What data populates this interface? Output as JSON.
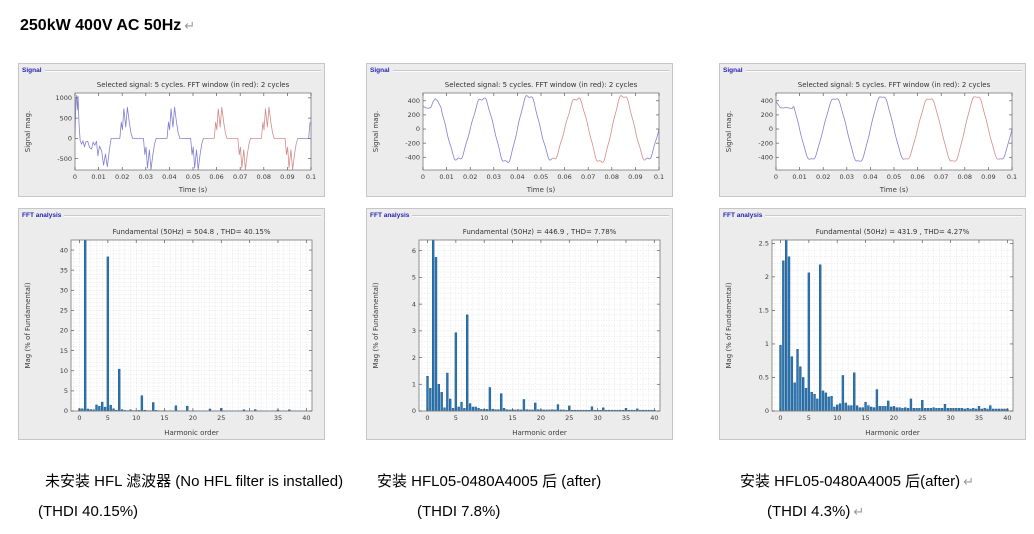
{
  "page": {
    "title": "250kW 400V AC 50Hz",
    "paragraph_mark": "↵"
  },
  "colors": {
    "panel_bg": "#ececec",
    "panel_label": "#2424b0",
    "bar_fill": "#2e75b0",
    "bar_edge": "#1d5e94",
    "line_blue": "#8080d2",
    "line_red": "#d48b8b",
    "axis_text": "#3c3c3c",
    "grid": "#d7d7d7"
  },
  "columns": [
    {
      "caption_line1": "未安装 HFL 滤波器  (No HFL filter is installed)",
      "mark1": "",
      "caption_line2": "(THDI 40.15%)",
      "mark2": ""
    },
    {
      "caption_line1": "安装 HFL05-0480A4005 后  (after)",
      "mark1": "",
      "caption_line2": "(THDI 7.8%)",
      "mark2": ""
    },
    {
      "caption_line1": "安装 HFL05-0480A4005 后(after)",
      "mark1": "↵",
      "caption_line2": "(THDI 4.3%)",
      "mark2": "↵"
    }
  ],
  "chart_data": [
    {
      "id": "signal-no-filter",
      "type": "line",
      "panel_label": "Signal",
      "title": "Selected signal: 5 cycles. FFT window (in red): 2 cycles",
      "xlabel": "Time (s)",
      "ylabel": "Signal mag.",
      "xlim": [
        0,
        0.1
      ],
      "ylim": [
        -780,
        1120
      ],
      "xticks": [
        0,
        0.01,
        0.02,
        0.03,
        0.04,
        0.05,
        0.06,
        0.07,
        0.08,
        0.09,
        0.1
      ],
      "xtick_labels": [
        "0",
        "0.01",
        "0.02",
        "0.03",
        "0.04",
        "0.05",
        "0.06",
        "0.07",
        "0.08",
        "0.09",
        "0.1"
      ],
      "yticks": [
        -500,
        0,
        500,
        1000
      ],
      "ytick_labels": [
        "-500",
        "0",
        "500",
        "1000"
      ],
      "grid": null,
      "window_red_s": [
        0.0545,
        0.0945
      ],
      "waveform": {
        "kind": "keypoints",
        "period_ms": 20,
        "start_offset_ms": 17.5,
        "startup": [
          [
            0,
            20
          ],
          [
            0.4,
            950
          ],
          [
            0.7,
            1060
          ],
          [
            1.0,
            700
          ],
          [
            1.3,
            1040
          ],
          [
            1.7,
            350
          ],
          [
            2.2,
            -60
          ],
          [
            2.8,
            -140
          ],
          [
            3.4,
            -60
          ],
          [
            4.0,
            -210
          ],
          [
            4.6,
            -90
          ],
          [
            5.4,
            -70
          ],
          [
            6.2,
            -230
          ],
          [
            7.0,
            -260
          ],
          [
            7.7,
            -90
          ],
          [
            8.4,
            -170
          ],
          [
            9.1,
            -70
          ],
          [
            9.7,
            -430
          ],
          [
            10.4,
            -190
          ],
          [
            11.3,
            -310
          ],
          [
            12.1,
            -660
          ],
          [
            12.9,
            -390
          ],
          [
            13.7,
            -700
          ],
          [
            14.6,
            -270
          ],
          [
            15.3,
            0
          ],
          [
            17.5,
            0
          ]
        ],
        "half_cycle": [
          [
            0,
            0
          ],
          [
            1.5,
            0
          ],
          [
            2.1,
            400
          ],
          [
            2.6,
            215
          ],
          [
            3.2,
            730
          ],
          [
            4.0,
            280
          ],
          [
            4.7,
            770
          ],
          [
            5.5,
            400
          ],
          [
            6.2,
            140
          ],
          [
            6.9,
            0
          ],
          [
            10,
            0
          ]
        ]
      }
    },
    {
      "id": "fft-no-filter",
      "type": "bar",
      "panel_label": "FFT analysis",
      "title": "Fundamental (50Hz) = 504.8 , THD= 40.15%",
      "xlabel": "Harmonic order",
      "ylabel": "Mag (% of Fundamental)",
      "xlim": [
        -1.5,
        41
      ],
      "ylim": [
        0,
        42.5
      ],
      "xticks": [
        0,
        5,
        10,
        15,
        20,
        25,
        30,
        35,
        40
      ],
      "xtick_labels": [
        "0",
        "5",
        "10",
        "15",
        "20",
        "25",
        "30",
        "35",
        "40"
      ],
      "yticks": [
        0,
        5,
        10,
        15,
        20,
        25,
        30,
        35,
        40
      ],
      "ytick_labels": [
        "0",
        "5",
        "10",
        "15",
        "20",
        "25",
        "30",
        "35",
        "40"
      ],
      "grid": {
        "x_step": 1,
        "y_step": 1
      },
      "bar_step": 0.5,
      "values": [
        0.55,
        0.55,
        100,
        0.5,
        0.35,
        0.3,
        1.5,
        1.15,
        2.2,
        0.95,
        38.3,
        1.45,
        0.55,
        0.2,
        10.4,
        0.35,
        0.15,
        0.1,
        0.3,
        0.1,
        0.1,
        0.15,
        3.8,
        0.2,
        0.1,
        0.08,
        2.1,
        0.15,
        0.08,
        0.06,
        0.1,
        0.06,
        0.08,
        0.06,
        1.3,
        0.08,
        0.06,
        0.06,
        1.2,
        0.06,
        0.08,
        0.05,
        0.05,
        0.05,
        0.05,
        0.05,
        0.5,
        0.05,
        0.05,
        0.05,
        0.65,
        0.05,
        0.05,
        0.04,
        0.04,
        0.04,
        0.04,
        0.04,
        0.3,
        0.04,
        0.04,
        0.04,
        0.35,
        0.04,
        0.04,
        0.03,
        0.03,
        0.03,
        0.03,
        0.03,
        0.25,
        0.03,
        0.03,
        0.03,
        0.3,
        0.03,
        0.03,
        0.03,
        0.03,
        0.03,
        0.03
      ]
    },
    {
      "id": "signal-after-1",
      "type": "line",
      "panel_label": "Signal",
      "title": "Selected signal: 5 cycles. FFT window (in red): 2 cycles",
      "xlabel": "Time (s)",
      "ylabel": "Signal mag.",
      "xlim": [
        0,
        0.1
      ],
      "ylim": [
        -580,
        510
      ],
      "xticks": [
        0,
        0.01,
        0.02,
        0.03,
        0.04,
        0.05,
        0.06,
        0.07,
        0.08,
        0.09,
        0.1
      ],
      "xtick_labels": [
        "0",
        "0.01",
        "0.02",
        "0.03",
        "0.04",
        "0.05",
        "0.06",
        "0.07",
        "0.08",
        "0.09",
        "0.1"
      ],
      "yticks": [
        -400,
        -200,
        0,
        200,
        400
      ],
      "ytick_labels": [
        "-400",
        "-200",
        "0",
        "200",
        "400"
      ],
      "grid": null,
      "window_red_s": [
        0.0545,
        0.0945
      ],
      "waveform": {
        "kind": "harmonic",
        "amplitude": 460,
        "fundamental_hz": 50,
        "phase_deg": 0,
        "harmonics": [
          {
            "n": 1.5,
            "pct": 5.75,
            "phase_deg": 0
          },
          {
            "n": 5,
            "pct": 2.93,
            "phase_deg": 180
          },
          {
            "n": 7,
            "pct": 3.6,
            "phase_deg": 0
          }
        ],
        "startup": [
          [
            0,
            320
          ],
          [
            1.2,
            300
          ],
          [
            2.4,
            292
          ],
          [
            3.4,
            310
          ],
          [
            4.3,
            390
          ],
          [
            5.2,
            428
          ],
          [
            6.2,
            400
          ],
          [
            7.0,
            345
          ],
          [
            7.6,
            310
          ]
        ]
      }
    },
    {
      "id": "fft-after-1",
      "type": "bar",
      "panel_label": "FFT analysis",
      "title": "Fundamental (50Hz) = 446.9 , THD= 7.78%",
      "xlabel": "Harmonic order",
      "ylabel": "Mag (% of Fundamental)",
      "xlim": [
        -1.5,
        41
      ],
      "ylim": [
        0,
        6.4
      ],
      "xticks": [
        0,
        5,
        10,
        15,
        20,
        25,
        30,
        35,
        40
      ],
      "xtick_labels": [
        "0",
        "5",
        "10",
        "15",
        "20",
        "25",
        "30",
        "35",
        "40"
      ],
      "yticks": [
        0,
        1,
        2,
        3,
        4,
        5,
        6
      ],
      "ytick_labels": [
        "0",
        "1",
        "2",
        "3",
        "4",
        "5",
        "6"
      ],
      "grid": {
        "x_step": 1,
        "y_step": 0.2
      },
      "bar_step": 0.5,
      "values": [
        1.3,
        0.85,
        100,
        5.75,
        1.0,
        0.7,
        0.12,
        1.42,
        0.45,
        0.1,
        2.93,
        0.15,
        0.33,
        0.1,
        3.6,
        0.28,
        0.15,
        0.15,
        0.1,
        0.06,
        0.06,
        0.06,
        0.88,
        0.07,
        0.05,
        0.05,
        0.65,
        0.1,
        0.05,
        0.04,
        0.05,
        0.04,
        0.05,
        0.04,
        0.43,
        0.05,
        0.04,
        0.04,
        0.3,
        0.05,
        0.05,
        0.04,
        0.04,
        0.04,
        0.05,
        0.04,
        0.24,
        0.04,
        0.04,
        0.03,
        0.19,
        0.03,
        0.03,
        0.03,
        0.03,
        0.03,
        0.03,
        0.03,
        0.16,
        0.03,
        0.03,
        0.03,
        0.12,
        0.03,
        0.03,
        0.03,
        0.03,
        0.03,
        0.03,
        0.03,
        0.1,
        0.03,
        0.03,
        0.03,
        0.08,
        0.03,
        0.03,
        0.03,
        0.03,
        0.03,
        0.03
      ]
    },
    {
      "id": "signal-after-2",
      "type": "line",
      "panel_label": "Signal",
      "title": "Selected signal: 5 cycles. FFT window (in red): 2 cycles",
      "xlabel": "Time (s)",
      "ylabel": "Signal mag.",
      "xlim": [
        0,
        0.1
      ],
      "ylim": [
        -580,
        510
      ],
      "xticks": [
        0,
        0.01,
        0.02,
        0.03,
        0.04,
        0.05,
        0.06,
        0.07,
        0.08,
        0.09,
        0.1
      ],
      "xtick_labels": [
        "0",
        "0.01",
        "0.02",
        "0.03",
        "0.04",
        "0.05",
        "0.06",
        "0.07",
        "0.08",
        "0.09",
        "0.1"
      ],
      "yticks": [
        -400,
        -200,
        0,
        200,
        400
      ],
      "ytick_labels": [
        "-400",
        "-200",
        "0",
        "200",
        "400"
      ],
      "grid": null,
      "window_red_s": [
        0.0545,
        0.0945
      ],
      "waveform": {
        "kind": "harmonic",
        "amplitude": 455,
        "fundamental_hz": 50,
        "phase_deg": 0,
        "harmonics": [
          {
            "n": 0.5,
            "pct": 2.24,
            "phase_deg": 0
          },
          {
            "n": 1.5,
            "pct": 2.3,
            "phase_deg": 0
          },
          {
            "n": 5,
            "pct": 2.06,
            "phase_deg": 180
          },
          {
            "n": 7,
            "pct": 2.18,
            "phase_deg": 0
          }
        ],
        "startup": [
          [
            0,
            388
          ],
          [
            0.9,
            345
          ],
          [
            1.8,
            302
          ],
          [
            3.0,
            298
          ],
          [
            4.5,
            305
          ],
          [
            5.8,
            296
          ],
          [
            6.8,
            290
          ],
          [
            7.4,
            318
          ]
        ]
      }
    },
    {
      "id": "fft-after-2",
      "type": "bar",
      "panel_label": "FFT analysis",
      "title": "Fundamental (50Hz) = 431.9 , THD= 4.27%",
      "xlabel": "Harmonic order",
      "ylabel": "Mag (% of Fundamental)",
      "xlim": [
        -1.5,
        41
      ],
      "ylim": [
        0,
        2.55
      ],
      "xticks": [
        0,
        5,
        10,
        15,
        20,
        25,
        30,
        35,
        40
      ],
      "xtick_labels": [
        "0",
        "5",
        "10",
        "15",
        "20",
        "25",
        "30",
        "35",
        "40"
      ],
      "yticks": [
        0,
        0.5,
        1,
        1.5,
        2,
        2.5
      ],
      "ytick_labels": [
        "0",
        "0.5",
        "1",
        "1.5",
        "2",
        "2.5"
      ],
      "grid": {
        "x_step": 1,
        "y_step": 0.1
      },
      "bar_step": 0.5,
      "values": [
        0.98,
        2.24,
        100,
        2.3,
        0.81,
        0.42,
        0.92,
        0.66,
        0.5,
        0.34,
        2.06,
        0.28,
        0.25,
        0.18,
        2.18,
        0.3,
        0.27,
        0.21,
        0.22,
        0.06,
        0.09,
        0.11,
        0.53,
        0.12,
        0.08,
        0.08,
        0.57,
        0.08,
        0.05,
        0.05,
        0.13,
        0.08,
        0.06,
        0.05,
        0.32,
        0.07,
        0.07,
        0.07,
        0.15,
        0.06,
        0.07,
        0.05,
        0.05,
        0.04,
        0.05,
        0.04,
        0.18,
        0.04,
        0.04,
        0.04,
        0.16,
        0.04,
        0.04,
        0.04,
        0.05,
        0.04,
        0.04,
        0.04,
        0.1,
        0.04,
        0.04,
        0.04,
        0.04,
        0.04,
        0.04,
        0.03,
        0.04,
        0.03,
        0.04,
        0.03,
        0.07,
        0.03,
        0.04,
        0.03,
        0.08,
        0.03,
        0.03,
        0.03,
        0.03,
        0.03,
        0.03
      ]
    }
  ]
}
